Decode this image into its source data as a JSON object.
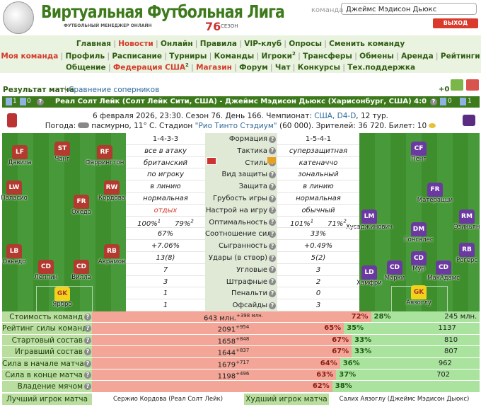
{
  "header": {
    "logo": "Виртуальная Футбольная Лига",
    "tagline": "ФУТБОЛЬНЫЙ МЕНЕДЖЕР ОНЛАЙН",
    "season_number": "76",
    "season_word": "СЕЗОН",
    "team_label": "команда",
    "team_select": "Джеймс Мэдисон Дьюкс",
    "logout": "ВЫХОД"
  },
  "nav": [
    [
      {
        "text": "Главная"
      },
      {
        "text": "Новости",
        "red": true
      },
      {
        "text": "Онлайн"
      },
      {
        "text": "Правила"
      },
      {
        "text": "VIP-клуб"
      },
      {
        "text": "Опросы"
      },
      {
        "text": "Сменить команду"
      }
    ],
    [
      {
        "text": "Моя команда",
        "red": true
      },
      {
        "text": "Профиль"
      },
      {
        "text": "Расписание"
      },
      {
        "text": "Турниры"
      },
      {
        "text": "Команды"
      },
      {
        "text": "Игроки",
        "sup": "2"
      },
      {
        "text": "Трансферы"
      },
      {
        "text": "Обмены"
      },
      {
        "text": "Аренда"
      },
      {
        "text": "Рейтинги"
      }
    ],
    [
      {
        "text": "Общение"
      },
      {
        "text": "Федерация США",
        "red": true,
        "sup": "2"
      },
      {
        "text": "Магазин",
        "red": true
      },
      {
        "text": "Форум"
      },
      {
        "text": "Чат"
      },
      {
        "text": "Конкурсы"
      },
      {
        "text": "Тех.поддержка"
      }
    ]
  ],
  "tabs": {
    "active": "Результат матча",
    "other": "Сравнение соперников",
    "score_delta": "+0"
  },
  "match": {
    "title": "Реал Солт Лейк (Солт Лейк Сити, США) - Джеймс Мэдисон Дьюкс (Харисонбург, США)",
    "score": "4:0",
    "left_icons": [
      "1",
      "0"
    ],
    "right_icons": [
      "0",
      "1"
    ],
    "date_prefix": "6 февраля 2026, 23:30. Сезон 76. День 166. Чемпионат: ",
    "league": "США, D4-D",
    "date_suffix": ", 12 тур.",
    "weather_prefix": "Погода:",
    "weather": "пасмурно, 11° С. Стадион ",
    "stadium": "\"Рио Тинто Стэдиум\"",
    "attendance": " (60 000). Зрителей: 36 720. Билет: 10"
  },
  "home_players": [
    {
      "pos": "LF",
      "name": "Давила"
    },
    {
      "pos": "ST",
      "name": "Чанг"
    },
    {
      "pos": "RF",
      "name": "Фаррингтон"
    },
    {
      "pos": "LW",
      "name": "Паласио"
    },
    {
      "pos": "FR",
      "name": "Охеда"
    },
    {
      "pos": "RW",
      "name": "Кордова"
    },
    {
      "pos": "LB",
      "name": "Овьедо"
    },
    {
      "pos": "CD",
      "name": "Леппик"
    },
    {
      "pos": "CD",
      "name": "Вилла"
    },
    {
      "pos": "RB",
      "name": "Акрамов"
    },
    {
      "pos": "GK",
      "name": "Ярбро"
    }
  ],
  "away_players": [
    {
      "pos": "CF",
      "name": "Пенг"
    },
    {
      "pos": "FR",
      "name": "Матерацци"
    },
    {
      "pos": "LM",
      "name": "Хусаджинович"
    },
    {
      "pos": "DM",
      "name": "Гонсалес"
    },
    {
      "pos": "RM",
      "name": "Эзикьян"
    },
    {
      "pos": "RB",
      "name": "Рогерс"
    },
    {
      "pos": "CD",
      "name": "Мур"
    },
    {
      "pos": "LD",
      "name": "Хамфри"
    },
    {
      "pos": "CD",
      "name": "Марки"
    },
    {
      "pos": "CD",
      "name": "МакАдамс"
    },
    {
      "pos": "GK",
      "name": "Аязоглу"
    }
  ],
  "stats": [
    {
      "left": "1-4-3-3",
      "label": "Формация",
      "right": "1-5-4-1"
    },
    {
      "left": "все в атаку",
      "label": "Тактика",
      "right": "суперзащитная",
      "italic": true
    },
    {
      "left": "британский",
      "label": "Стиль",
      "right": "катеначчо",
      "italic": true
    },
    {
      "left": "по игроку",
      "label": "Вид защиты",
      "right": "зональный",
      "italic": true
    },
    {
      "left": "в линию",
      "label": "Защита",
      "right": "в линию",
      "italic": true
    },
    {
      "left": "нормальная",
      "label": "Грубость игры",
      "right": "нормальная",
      "italic": true
    },
    {
      "left": "отдых",
      "label": "Настрой на игру",
      "right": "обычный",
      "italic": true,
      "left_red": true
    },
    {
      "left": [
        {
          "text": "100%",
          "sup": "1"
        },
        {
          "text": "79%",
          "sup": "2"
        }
      ],
      "label": "Оптимальность",
      "right": [
        {
          "text": "101%",
          "sup": "1"
        },
        {
          "text": "71%",
          "sup": "2"
        }
      ],
      "italic": true
    },
    {
      "left": "67%",
      "label": "Соотношение сил",
      "right": "33%",
      "italic": true
    },
    {
      "left": "+7.06%",
      "label": "Сыгранность",
      "right": "+0.49%",
      "italic": true
    },
    {
      "left": "13(8)",
      "label": "Удары (в створ)",
      "right": "5(2)",
      "italic": true
    },
    {
      "left": "7",
      "label": "Угловые",
      "right": "3",
      "italic": true
    },
    {
      "left": "3",
      "label": "Штрафные",
      "right": "2",
      "italic": true
    },
    {
      "left": "1",
      "label": "Пенальти",
      "right": "0",
      "italic": true
    },
    {
      "left": "1",
      "label": "Офсайды",
      "right": "3",
      "italic": true
    }
  ],
  "comparison": [
    {
      "label": "Стоимость команд",
      "left": "643 млн.",
      "left_delta": "+398 млн.",
      "left_pct": {
        "value": 72,
        "label": "72%"
      },
      "right_pct": {
        "value": 28,
        "label": "28%"
      },
      "right": "245 млн."
    },
    {
      "label": "Рейтинг силы команд",
      "left": "2091",
      "left_delta": "+954",
      "left_pct": {
        "value": 65,
        "label": "65%"
      },
      "right_pct": {
        "value": 35,
        "label": "35%"
      },
      "right": "1137"
    },
    {
      "label": "Стартовый состав",
      "left": "1658",
      "left_delta": "+848",
      "left_pct": {
        "value": 67,
        "label": "67%"
      },
      "right_pct": {
        "value": 33,
        "label": "33%"
      },
      "right": "810"
    },
    {
      "label": "Игравший состав",
      "left": "1644",
      "left_delta": "+837",
      "left_pct": {
        "value": 67,
        "label": "67%"
      },
      "right_pct": {
        "value": 33,
        "label": "33%"
      },
      "right": "807"
    },
    {
      "label": "Сила в начале матча",
      "left": "1679",
      "left_delta": "+717",
      "left_pct": {
        "value": 64,
        "label": "64%"
      },
      "right_pct": {
        "value": 36,
        "label": "36%"
      },
      "right": "962"
    },
    {
      "label": "Сила в конце матча",
      "left": "1198",
      "left_delta": "+496",
      "left_pct": {
        "value": 63,
        "label": "63%"
      },
      "right_pct": {
        "value": 37,
        "label": "37%"
      },
      "right": "702"
    },
    {
      "label": "Владение мячом",
      "left_pct": {
        "value": 62,
        "label": "62%"
      },
      "right_pct": {
        "value": 38,
        "label": "38%"
      }
    }
  ],
  "footer": {
    "best_label": "Лучший игрок матча",
    "best": "Сержио Кордова (Реал Солт Лейк)",
    "worst_label": "Худший игрок матча",
    "worst": "Салих Аязоглу (Джеймс Мэдисон Дьюкс)"
  }
}
